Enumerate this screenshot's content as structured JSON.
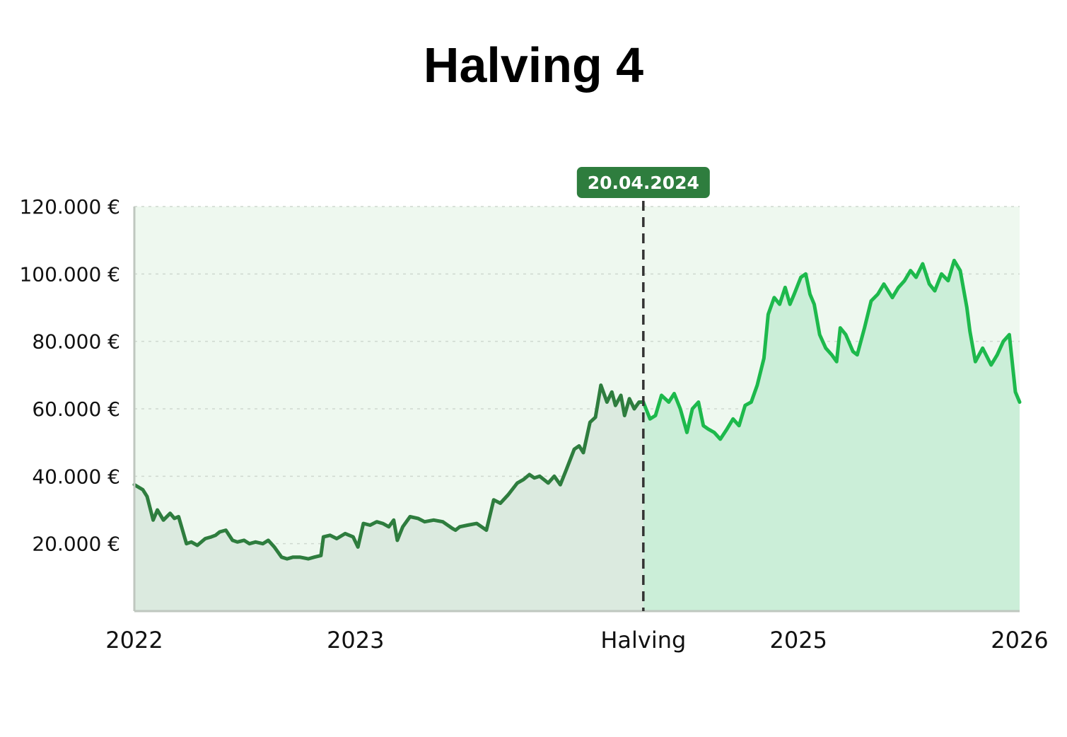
{
  "chart_data": {
    "type": "area",
    "title": "Halving 4",
    "xlabel": "",
    "ylabel": "",
    "x_range": [
      "2022-01-01",
      "2026-01-01"
    ],
    "ylim": [
      0,
      120000
    ],
    "y_ticks": [
      {
        "value": 20000,
        "label": "20.000 €"
      },
      {
        "value": 40000,
        "label": "40.000 €"
      },
      {
        "value": 60000,
        "label": "60.000 €"
      },
      {
        "value": 80000,
        "label": "80.000 €"
      },
      {
        "value": 100000,
        "label": "100.000 €"
      },
      {
        "value": 120000,
        "label": "120.000 €"
      }
    ],
    "x_ticks": [
      {
        "date": "2022-01-01",
        "label": "2022"
      },
      {
        "date": "2023-01-01",
        "label": "2023"
      },
      {
        "date": "2024-04-20",
        "label": "Halving"
      },
      {
        "date": "2025-01-01",
        "label": "2025"
      },
      {
        "date": "2026-01-01",
        "label": "2026"
      }
    ],
    "grid": true,
    "marker": {
      "date": "2024-04-20",
      "label": "20.04.2024"
    },
    "colors": {
      "before_line": "#2e7d3e",
      "after_line": "#1db94c",
      "before_fill": "#dbeadf",
      "after_fill": "#cbeed8",
      "background": "#eef8ef",
      "marker_badge": "#2e7d3e",
      "marker_line": "#333333"
    },
    "series": [
      {
        "x": [
          "2022-01-01",
          "2022-01-15",
          "2022-01-22",
          "2022-02-01",
          "2022-02-08",
          "2022-02-18",
          "2022-03-01",
          "2022-03-08",
          "2022-03-15",
          "2022-03-28",
          "2022-04-05",
          "2022-04-15",
          "2022-04-28",
          "2022-05-08",
          "2022-05-15",
          "2022-05-22",
          "2022-06-01",
          "2022-06-12",
          "2022-06-20",
          "2022-07-01",
          "2022-07-10",
          "2022-07-20",
          "2022-08-01",
          "2022-08-10",
          "2022-08-20",
          "2022-09-01",
          "2022-09-10",
          "2022-09-20",
          "2022-10-01",
          "2022-10-15",
          "2022-10-25",
          "2022-11-05",
          "2022-11-09",
          "2022-11-20",
          "2022-12-01",
          "2022-12-15",
          "2022-12-28",
          "2023-01-05",
          "2023-01-14",
          "2023-01-25",
          "2023-02-05",
          "2023-02-15",
          "2023-02-25",
          "2023-03-05",
          "2023-03-11",
          "2023-03-20",
          "2023-04-01",
          "2023-04-14",
          "2023-04-25",
          "2023-05-10",
          "2023-05-25",
          "2023-06-10",
          "2023-06-15",
          "2023-06-22",
          "2023-07-05",
          "2023-07-20",
          "2023-08-05",
          "2023-08-17",
          "2023-08-28",
          "2023-09-10",
          "2023-09-25",
          "2023-10-05",
          "2023-10-15",
          "2023-10-23",
          "2023-11-01",
          "2023-11-15",
          "2023-11-25",
          "2023-12-05",
          "2023-12-15",
          "2023-12-28",
          "2024-01-05",
          "2024-01-12",
          "2024-01-23",
          "2024-02-01",
          "2024-02-10",
          "2024-02-20",
          "2024-02-28",
          "2024-03-05",
          "2024-03-14",
          "2024-03-20",
          "2024-03-28",
          "2024-04-05",
          "2024-04-13",
          "2024-04-20"
        ],
        "y": [
          37500,
          36000,
          34000,
          27000,
          30000,
          27000,
          29000,
          27500,
          28000,
          20000,
          20500,
          19500,
          21500,
          22000,
          22500,
          23500,
          24000,
          21000,
          20500,
          21000,
          20000,
          20500,
          20000,
          21000,
          19000,
          16000,
          15500,
          16000,
          16000,
          15500,
          16000,
          16500,
          22000,
          22500,
          21500,
          23000,
          22000,
          19000,
          26000,
          25500,
          26500,
          26000,
          25000,
          27000,
          21000,
          25000,
          28000,
          27500,
          26500,
          27000,
          26500,
          24500,
          24000,
          25000,
          25500,
          26000,
          24000,
          33000,
          32000,
          34500,
          38000,
          39000,
          40500,
          39500,
          40000,
          38000,
          40000,
          37500,
          42000,
          48000,
          49000,
          47000,
          56000,
          57500,
          67000,
          62000,
          65000,
          61000,
          64000,
          58000,
          63000,
          60000,
          62000,
          62000
        ]
      },
      {
        "x": [
          "2024-04-20",
          "2024-05-01",
          "2024-05-10",
          "2024-05-20",
          "2024-06-01",
          "2024-06-10",
          "2024-06-20",
          "2024-07-01",
          "2024-07-10",
          "2024-07-20",
          "2024-07-28",
          "2024-08-05",
          "2024-08-15",
          "2024-08-25",
          "2024-09-05",
          "2024-09-15",
          "2024-09-25",
          "2024-10-05",
          "2024-10-15",
          "2024-10-25",
          "2024-11-05",
          "2024-11-12",
          "2024-11-22",
          "2024-12-01",
          "2024-12-10",
          "2024-12-18",
          "2024-12-25",
          "2025-01-05",
          "2025-01-13",
          "2025-01-20",
          "2025-01-27",
          "2025-02-05",
          "2025-02-15",
          "2025-02-25",
          "2025-03-05",
          "2025-03-11",
          "2025-03-20",
          "2025-04-01",
          "2025-04-08",
          "2025-04-20",
          "2025-05-01",
          "2025-05-12",
          "2025-05-22",
          "2025-06-05",
          "2025-06-15",
          "2025-06-25",
          "2025-07-05",
          "2025-07-14",
          "2025-07-25",
          "2025-08-05",
          "2025-08-14",
          "2025-08-25",
          "2025-09-05",
          "2025-09-15",
          "2025-09-25",
          "2025-10-06",
          "2025-10-11",
          "2025-10-20",
          "2025-11-01",
          "2025-11-15",
          "2025-11-25",
          "2025-12-05",
          "2025-12-15",
          "2025-12-25",
          "2026-01-01"
        ],
        "y": [
          62000,
          57000,
          58000,
          64000,
          62000,
          64500,
          60000,
          53000,
          60000,
          62000,
          55000,
          54000,
          53000,
          51000,
          54000,
          57000,
          55000,
          61000,
          62000,
          67000,
          75000,
          88000,
          93000,
          91000,
          96000,
          91000,
          94000,
          99000,
          100000,
          94000,
          91000,
          82000,
          78000,
          76000,
          74000,
          84000,
          82000,
          77000,
          76000,
          84000,
          92000,
          94000,
          97000,
          93000,
          96000,
          98000,
          101000,
          99000,
          103000,
          97000,
          95000,
          100000,
          98000,
          104000,
          101000,
          90000,
          83000,
          74000,
          78000,
          73000,
          76000,
          80000,
          82000,
          65000,
          62000
        ]
      }
    ]
  }
}
